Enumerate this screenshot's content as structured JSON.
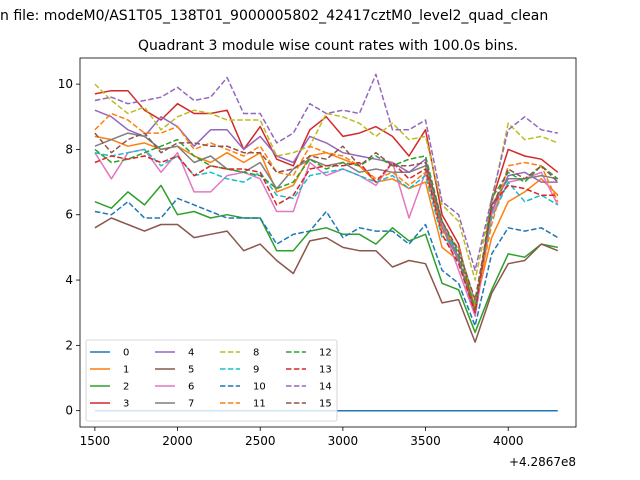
{
  "chart_data": {
    "type": "line",
    "suptitle": "n file: modeM0/AS1T05_138T01_9000005802_42417cztM0_level2_quad_clean",
    "title": "Quadrant 3 module wise count rates with 100.0s bins.",
    "offset_label": "+4.2867e8",
    "xlim": [
      1410,
      4410
    ],
    "ylim": [
      -0.5,
      10.8
    ],
    "xticks": [
      1500,
      2000,
      2500,
      3000,
      3500,
      4000
    ],
    "xtick_labels": [
      "1500",
      "2000",
      "2500",
      "3000",
      "3500",
      "4000"
    ],
    "yticks": [
      0,
      2,
      4,
      6,
      8,
      10
    ],
    "ytick_labels": [
      "0",
      "2",
      "4",
      "6",
      "8",
      "10"
    ],
    "legend_position": "lower-left",
    "x": [
      1500,
      1600,
      1700,
      1800,
      1900,
      2000,
      2100,
      2200,
      2300,
      2400,
      2500,
      2600,
      2700,
      2800,
      2900,
      3000,
      3100,
      3200,
      3300,
      3400,
      3500,
      3600,
      3700,
      3800,
      3900,
      4000,
      4100,
      4200,
      4300
    ],
    "series": [
      {
        "name": "0",
        "color": "#1f77b4",
        "dash": "solid",
        "values": [
          0,
          0,
          0,
          0,
          0,
          0,
          0,
          0,
          0,
          0,
          0,
          0,
          0,
          0,
          0,
          0,
          0,
          0,
          0,
          0,
          0,
          0,
          0,
          0,
          0,
          0,
          0,
          0,
          0
        ]
      },
      {
        "name": "1",
        "color": "#ff7f0e",
        "dash": "solid",
        "values": [
          8.4,
          8.3,
          8.1,
          8.2,
          8.0,
          8.1,
          7.8,
          7.6,
          7.9,
          7.6,
          7.9,
          6.7,
          6.9,
          7.8,
          7.9,
          7.7,
          7.5,
          7.0,
          7.1,
          6.8,
          7.0,
          5.0,
          4.6,
          3.2,
          5.3,
          6.4,
          6.7,
          7.1,
          6.6
        ]
      },
      {
        "name": "2",
        "color": "#2ca02c",
        "dash": "solid",
        "values": [
          6.4,
          6.2,
          6.7,
          6.3,
          6.9,
          6.0,
          6.1,
          5.9,
          6.0,
          5.9,
          5.9,
          4.9,
          4.9,
          5.5,
          5.6,
          5.4,
          5.4,
          5.1,
          5.6,
          5.2,
          5.4,
          3.9,
          3.7,
          2.4,
          3.7,
          4.8,
          4.7,
          5.1,
          5.0
        ]
      },
      {
        "name": "3",
        "color": "#d62728",
        "dash": "solid",
        "values": [
          9.7,
          9.8,
          9.8,
          9.2,
          8.9,
          9.4,
          9.1,
          9.1,
          9.2,
          8.0,
          8.7,
          7.7,
          7.5,
          8.6,
          9.0,
          8.4,
          8.5,
          8.7,
          8.4,
          7.8,
          8.6,
          6.0,
          5.1,
          3.0,
          6.4,
          8.0,
          7.8,
          7.7,
          7.3
        ]
      },
      {
        "name": "4",
        "color": "#9467bd",
        "dash": "solid",
        "values": [
          9.2,
          9.0,
          8.6,
          8.4,
          9.0,
          8.7,
          8.1,
          8.6,
          8.6,
          8.0,
          8.4,
          7.8,
          7.6,
          8.4,
          8.2,
          7.9,
          7.8,
          7.7,
          7.6,
          7.3,
          7.7,
          5.7,
          4.7,
          2.9,
          6.1,
          7.2,
          7.3,
          7.0,
          7.0
        ]
      },
      {
        "name": "5",
        "color": "#8c564b",
        "dash": "solid",
        "values": [
          5.6,
          5.9,
          5.7,
          5.5,
          5.7,
          5.7,
          5.3,
          5.4,
          5.5,
          4.9,
          5.1,
          4.6,
          4.2,
          5.2,
          5.3,
          5.0,
          4.9,
          4.9,
          4.4,
          4.6,
          4.5,
          3.3,
          3.4,
          2.1,
          3.6,
          4.5,
          4.6,
          5.1,
          4.9
        ]
      },
      {
        "name": "6",
        "color": "#e377c2",
        "dash": "solid",
        "values": [
          7.9,
          7.1,
          7.9,
          8.0,
          7.3,
          7.9,
          6.7,
          6.7,
          7.2,
          7.3,
          7.1,
          6.1,
          6.1,
          7.6,
          7.2,
          7.4,
          7.2,
          6.9,
          7.6,
          5.9,
          7.3,
          5.7,
          4.3,
          2.9,
          6.0,
          7.0,
          7.1,
          7.3,
          6.3
        ]
      },
      {
        "name": "7",
        "color": "#7f7f7f",
        "dash": "solid",
        "values": [
          8.1,
          8.3,
          8.5,
          8.4,
          8.0,
          8.1,
          7.6,
          7.8,
          7.4,
          7.3,
          7.6,
          6.8,
          7.4,
          7.7,
          7.5,
          7.6,
          7.3,
          7.4,
          7.3,
          7.3,
          7.5,
          5.6,
          4.6,
          3.0,
          6.3,
          7.1,
          7.1,
          7.2,
          7.1
        ]
      },
      {
        "name": "8",
        "color": "#bcbd22",
        "dash": "dashed",
        "values": [
          10.0,
          9.5,
          9.1,
          9.3,
          8.6,
          9.0,
          9.2,
          9.1,
          8.9,
          8.9,
          8.9,
          7.8,
          7.9,
          8.1,
          9.1,
          9.0,
          8.8,
          8.4,
          8.8,
          8.3,
          8.4,
          6.3,
          5.8,
          4.0,
          6.4,
          8.8,
          8.3,
          8.4,
          8.2
        ]
      },
      {
        "name": "9",
        "color": "#17becf",
        "dash": "dashed",
        "values": [
          7.9,
          7.8,
          7.9,
          8.0,
          7.5,
          7.8,
          7.2,
          7.3,
          7.1,
          7.0,
          7.3,
          6.6,
          6.5,
          7.2,
          7.3,
          7.4,
          7.2,
          7.0,
          7.2,
          6.8,
          7.2,
          5.3,
          5.0,
          3.3,
          5.9,
          7.0,
          6.4,
          6.6,
          6.3
        ]
      },
      {
        "name": "10",
        "color": "#1f77b4",
        "dash": "dashed",
        "values": [
          6.1,
          6.0,
          6.4,
          5.9,
          5.9,
          6.5,
          6.3,
          6.1,
          5.9,
          5.9,
          5.9,
          5.1,
          5.4,
          5.5,
          6.1,
          5.3,
          5.6,
          5.5,
          5.5,
          5.1,
          5.7,
          4.3,
          3.9,
          2.6,
          4.8,
          5.6,
          5.5,
          5.6,
          5.3
        ]
      },
      {
        "name": "11",
        "color": "#ff7f0e",
        "dash": "dashed",
        "values": [
          8.6,
          9.1,
          8.9,
          8.5,
          8.5,
          8.7,
          8.0,
          8.2,
          8.0,
          7.8,
          8.1,
          7.3,
          7.2,
          8.1,
          7.9,
          7.8,
          7.5,
          7.1,
          7.3,
          6.9,
          7.3,
          5.5,
          5.0,
          3.2,
          5.7,
          7.5,
          7.6,
          7.5,
          6.4
        ]
      },
      {
        "name": "12",
        "color": "#2ca02c",
        "dash": "dashed",
        "values": [
          8.0,
          7.6,
          7.7,
          7.9,
          8.1,
          8.3,
          7.8,
          7.5,
          7.4,
          7.3,
          7.2,
          6.8,
          7.0,
          7.7,
          7.4,
          7.6,
          7.5,
          7.8,
          7.5,
          7.7,
          7.8,
          5.8,
          4.8,
          3.1,
          6.5,
          7.3,
          7.0,
          7.5,
          7.1
        ]
      },
      {
        "name": "13",
        "color": "#d62728",
        "dash": "dashed",
        "values": [
          7.6,
          7.8,
          7.7,
          7.8,
          7.6,
          7.8,
          7.2,
          7.5,
          7.4,
          7.4,
          7.3,
          6.3,
          6.6,
          7.4,
          7.5,
          7.5,
          7.6,
          7.0,
          7.6,
          7.1,
          7.4,
          5.4,
          4.5,
          3.0,
          6.3,
          6.9,
          6.8,
          6.6,
          6.6
        ]
      },
      {
        "name": "14",
        "color": "#9467bd",
        "dash": "dashed",
        "values": [
          9.5,
          9.6,
          9.4,
          9.5,
          9.6,
          9.9,
          9.5,
          9.6,
          10.2,
          9.1,
          9.1,
          8.2,
          8.5,
          9.4,
          9.1,
          9.2,
          9.1,
          10.3,
          8.6,
          8.6,
          8.9,
          6.4,
          6.0,
          4.3,
          6.5,
          8.6,
          9.0,
          8.6,
          8.5
        ]
      },
      {
        "name": "15",
        "color": "#8c564b",
        "dash": "dashed",
        "values": [
          8.5,
          7.9,
          8.3,
          8.5,
          7.9,
          8.2,
          8.2,
          8.1,
          8.1,
          7.9,
          7.9,
          7.3,
          7.4,
          7.8,
          7.7,
          8.1,
          7.5,
          7.9,
          7.5,
          7.5,
          7.6,
          5.8,
          4.9,
          3.4,
          6.2,
          7.4,
          7.1,
          7.5,
          7.0
        ]
      }
    ]
  }
}
